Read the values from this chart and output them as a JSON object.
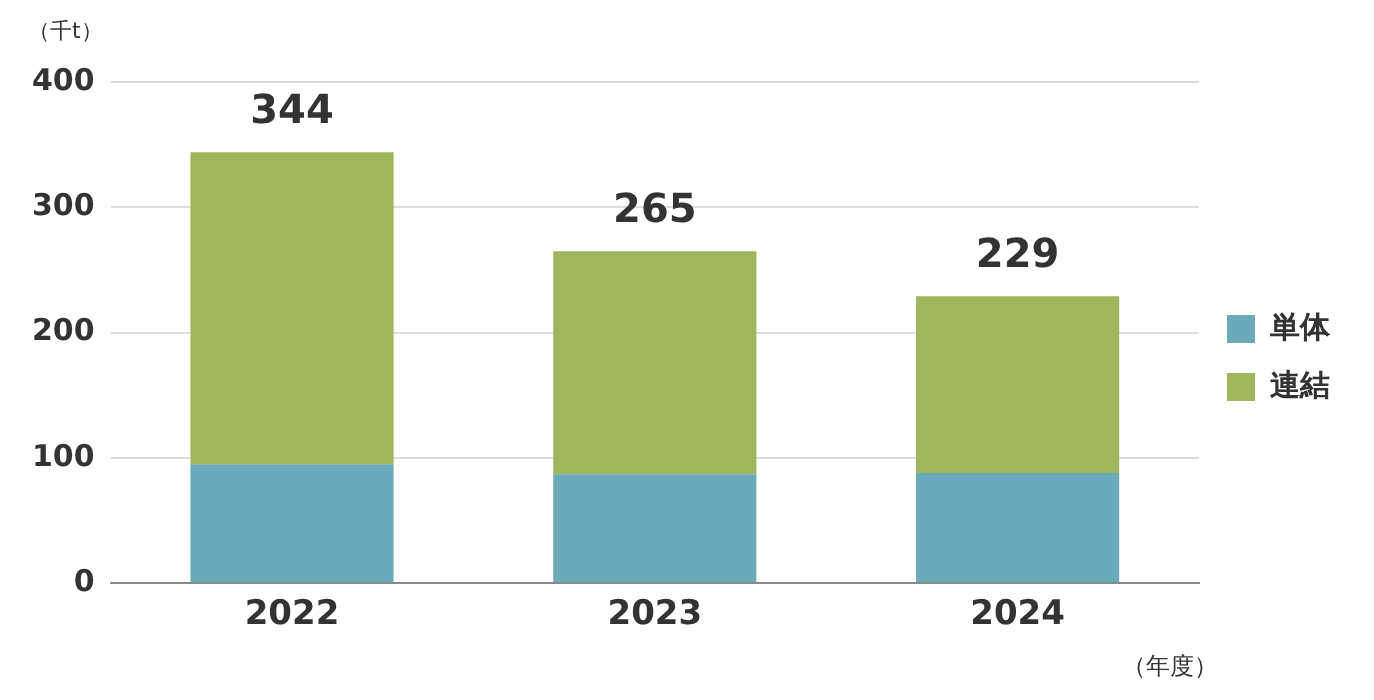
{
  "chart_data": {
    "type": "bar",
    "stacked": true,
    "ylabel": "（千t）",
    "xlabel": "（年度）",
    "categories": [
      "2022",
      "2023",
      "2024"
    ],
    "series": [
      {
        "name": "単体",
        "color": "#6aaabb",
        "values": [
          95,
          87,
          88
        ]
      },
      {
        "name": "連結",
        "color": "#a0b65c",
        "values": [
          249,
          178,
          141
        ]
      }
    ],
    "totals": [
      "344",
      "265",
      "229"
    ],
    "ylim": [
      0,
      400
    ],
    "yticks": [
      0,
      100,
      200,
      300,
      400
    ],
    "grid": "y",
    "legend": "right"
  }
}
